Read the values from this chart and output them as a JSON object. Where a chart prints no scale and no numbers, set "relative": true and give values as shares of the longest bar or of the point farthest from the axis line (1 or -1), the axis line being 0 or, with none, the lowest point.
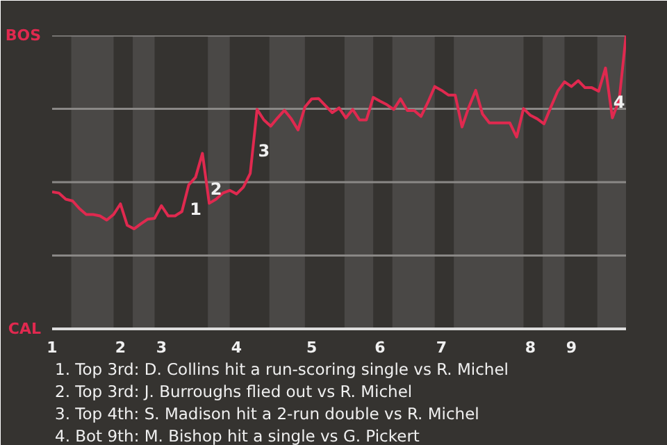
{
  "chart_data": {
    "type": "line",
    "relative": true,
    "categories": [
      "1",
      null,
      null,
      null,
      null,
      null,
      null,
      null,
      null,
      null,
      "2",
      null,
      null,
      null,
      null,
      null,
      "3",
      null,
      null,
      null,
      null,
      null,
      null,
      null,
      null,
      null,
      null,
      "4",
      null,
      null,
      null,
      null,
      null,
      null,
      null,
      null,
      null,
      null,
      "5",
      null,
      null,
      null,
      null,
      null,
      null,
      null,
      null,
      null,
      "6",
      null,
      null,
      null,
      null,
      null,
      null,
      null,
      null,
      "7",
      null,
      null,
      null,
      null,
      null,
      null,
      null,
      null,
      null,
      null,
      null,
      null,
      "8",
      null,
      null,
      null,
      null,
      null,
      "9",
      null,
      null,
      null,
      null,
      null,
      null,
      null,
      null
    ],
    "series": [
      {
        "color": "#e0294f",
        "values": [
          0.467,
          0.463,
          0.442,
          0.436,
          0.41,
          0.39,
          0.39,
          0.385,
          0.371,
          0.39,
          0.426,
          0.353,
          0.341,
          0.358,
          0.374,
          0.377,
          0.42,
          0.385,
          0.385,
          0.4,
          0.491,
          0.517,
          0.598,
          0.428,
          0.442,
          0.463,
          0.472,
          0.46,
          0.483,
          0.53,
          0.748,
          0.712,
          0.691,
          0.719,
          0.745,
          0.716,
          0.678,
          0.756,
          0.784,
          0.785,
          0.761,
          0.737,
          0.753,
          0.719,
          0.748,
          0.712,
          0.712,
          0.789,
          0.776,
          0.764,
          0.748,
          0.784,
          0.744,
          0.744,
          0.724,
          0.772,
          0.826,
          0.813,
          0.797,
          0.797,
          0.688,
          0.756,
          0.813,
          0.732,
          0.702,
          0.702,
          0.702,
          0.702,
          0.654,
          0.751,
          0.728,
          0.716,
          0.699,
          0.756,
          0.81,
          0.842,
          0.826,
          0.846,
          0.822,
          0.822,
          0.81,
          0.889,
          0.719,
          0.78,
          1.0
        ],
        "name": null
      }
    ],
    "ref_lines": [
      {
        "axis": "y",
        "value": 0.25,
        "color": "#8a8886"
      },
      {
        "axis": "y",
        "value": 0.5,
        "color": "#8a8886"
      },
      {
        "axis": "y",
        "value": 0.75,
        "color": "#8a8886"
      },
      {
        "axis": "y",
        "value": 1,
        "color": "#8a8886"
      }
    ],
    "annotations": [
      "BOS",
      "CAL",
      "1",
      "2",
      "3",
      "4",
      "1. Top 3rd: D. Collins hit a run-scoring single vs R. Michel",
      "2. Top 3rd: J. Burroughs flied out vs R. Michel",
      "3. Top 4th: S. Madison hit a 2-run double vs R. Michel",
      "4. Bot 9th: M. Bishop hit a single vs G. Pickert"
    ],
    "line_style": "solid"
  }
}
